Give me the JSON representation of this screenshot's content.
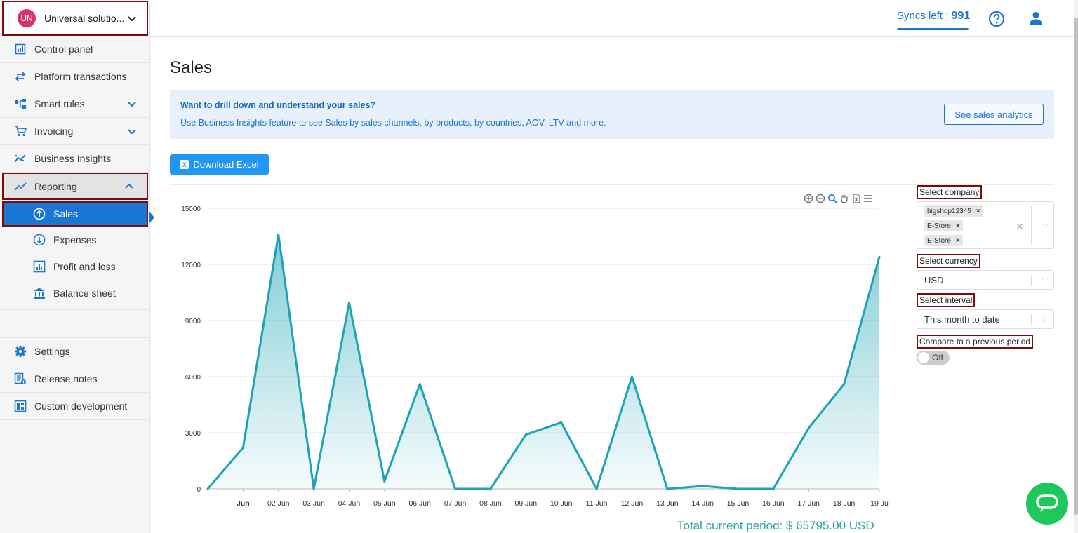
{
  "sidebar": {
    "org": {
      "initials": "UN",
      "name": "Universal solutio..."
    },
    "items": [
      {
        "label": "Control panel"
      },
      {
        "label": "Platform transactions"
      },
      {
        "label": "Smart rules"
      },
      {
        "label": "Invoicing"
      },
      {
        "label": "Business Insights"
      },
      {
        "label": "Reporting"
      }
    ],
    "reporting_sub": [
      {
        "label": "Sales"
      },
      {
        "label": "Expenses"
      },
      {
        "label": "Profit and loss"
      },
      {
        "label": "Balance sheet"
      }
    ],
    "bottom_items": [
      {
        "label": "Settings"
      },
      {
        "label": "Release notes"
      },
      {
        "label": "Custom development"
      }
    ]
  },
  "header": {
    "syncs_label": "Syncs left :",
    "syncs_value": "991"
  },
  "main": {
    "title": "Sales",
    "banner": {
      "heading": "Want to drill down and understand your sales?",
      "text": "Use Business Insights feature to see Sales by sales channels, by products, by countries, AOV, LTV and more.",
      "button": "See sales analytics"
    },
    "download_label": "Download Excel",
    "total_label": "Total current period: $ 65795.00 USD"
  },
  "filters": {
    "company_label": "Select company",
    "companies": [
      "bigshop12345",
      "E-Store",
      "E-Store"
    ],
    "currency_label": "Select currency",
    "currency_value": "USD",
    "interval_label": "Select interval",
    "interval_value": "This month to date",
    "compare_label": "Compare to a previous period",
    "compare_state": "Off"
  },
  "colors": {
    "accent": "#1976d2",
    "series": "#1ca3b5",
    "highlight": "#7a0c0c"
  },
  "chart_data": {
    "type": "area",
    "categories": [
      "Jun",
      "02 Jun",
      "03 Jun",
      "04 Jun",
      "05 Jun",
      "06 Jun",
      "07 Jun",
      "08 Jun",
      "09 Jun",
      "10 Jun",
      "11 Jun",
      "12 Jun",
      "13 Jun",
      "14 Jun",
      "15 Jun",
      "16 Jun",
      "17 Jun",
      "18 Jun",
      "19 Ju"
    ],
    "x_start_value": 0,
    "series": [
      {
        "values": [
          2200,
          13600,
          0,
          9950,
          400,
          5600,
          0,
          0,
          2900,
          3550,
          0,
          6000,
          0,
          150,
          0,
          0,
          3250,
          5600,
          12400
        ]
      }
    ],
    "yticks": [
      "15000",
      "12000",
      "9000",
      "6000",
      "3000",
      "0"
    ],
    "ylim": [
      0,
      15000
    ],
    "grid": true
  }
}
